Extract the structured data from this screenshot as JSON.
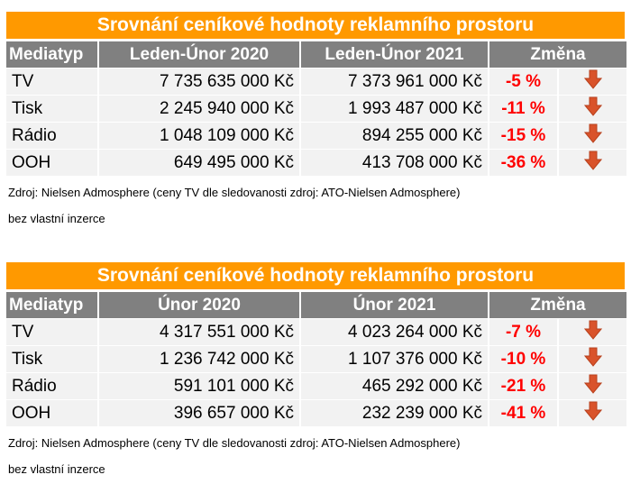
{
  "tables": [
    {
      "title": "Srovnání ceníkové hodnoty reklamního prostoru",
      "headers": [
        "Mediatyp",
        "Leden-Únor 2020",
        "Leden-Únor 2021",
        "Změna"
      ],
      "rows": [
        {
          "media": "TV",
          "v1": "7 735 635 000 Kč",
          "v2": "7 373 961 000 Kč",
          "change": "-5 %",
          "icon": "arrow-down-icon"
        },
        {
          "media": "Tisk",
          "v1": "2 245 940 000 Kč",
          "v2": "1 993 487 000 Kč",
          "change": "-11 %",
          "icon": "arrow-down-icon"
        },
        {
          "media": "Rádio",
          "v1": "1 048 109 000 Kč",
          "v2": "894 255 000 Kč",
          "change": "-15 %",
          "icon": "arrow-down-icon"
        },
        {
          "media": "OOH",
          "v1": "649 495 000 Kč",
          "v2": "413 708 000 Kč",
          "change": "-36 %",
          "icon": "arrow-down-icon"
        }
      ],
      "source": "Zdroj: Nielsen Admosphere (ceny TV dle sledovanosti zdroj: ATO-Nielsen Admosphere)",
      "note": "bez vlastní inzerce"
    },
    {
      "title": "Srovnání ceníkové hodnoty reklamního prostoru",
      "headers": [
        "Mediatyp",
        "Únor 2020",
        "Únor 2021",
        "Změna"
      ],
      "rows": [
        {
          "media": "TV",
          "v1": "4 317 551 000 Kč",
          "v2": "4 023 264 000 Kč",
          "change": "-7 %",
          "icon": "arrow-down-icon"
        },
        {
          "media": "Tisk",
          "v1": "1 236 742 000 Kč",
          "v2": "1 107 376 000 Kč",
          "change": "-10 %",
          "icon": "arrow-down-icon"
        },
        {
          "media": "Rádio",
          "v1": "591 101 000 Kč",
          "v2": "465 292 000 Kč",
          "change": "-21 %",
          "icon": "arrow-down-icon"
        },
        {
          "media": "OOH",
          "v1": "396 657 000 Kč",
          "v2": "232 239 000 Kč",
          "change": "-41 %",
          "icon": "arrow-down-icon"
        }
      ],
      "source": "Zdroj: Nielsen Admosphere (ceny TV dle sledovanosti zdroj: ATO-Nielsen Admosphere)",
      "note": "bez vlastní inzerce"
    }
  ],
  "colors": {
    "title_bg": "#ff9900",
    "header_bg": "#808080",
    "change_text": "#ff0000",
    "arrow": "#d9532b"
  }
}
